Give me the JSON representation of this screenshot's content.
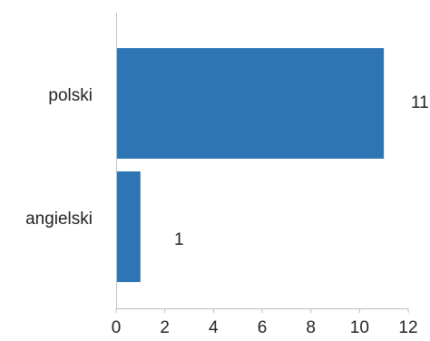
{
  "chart_data": {
    "type": "bar",
    "orientation": "horizontal",
    "categories": [
      "polski",
      "angielski"
    ],
    "values": [
      11,
      1
    ],
    "data_labels": [
      "11",
      "1"
    ],
    "title": "",
    "xlabel": "",
    "ylabel": "",
    "xlim": [
      0,
      12
    ],
    "x_ticks": [
      0,
      2,
      4,
      6,
      8,
      10,
      12
    ],
    "x_tick_labels": [
      "0",
      "2",
      "4",
      "6",
      "8",
      "10",
      "12"
    ],
    "grid": false,
    "legend": "none",
    "colors": {
      "bar": "#2e75b6",
      "axis": "#bfbfbf",
      "text": "#222222"
    }
  }
}
